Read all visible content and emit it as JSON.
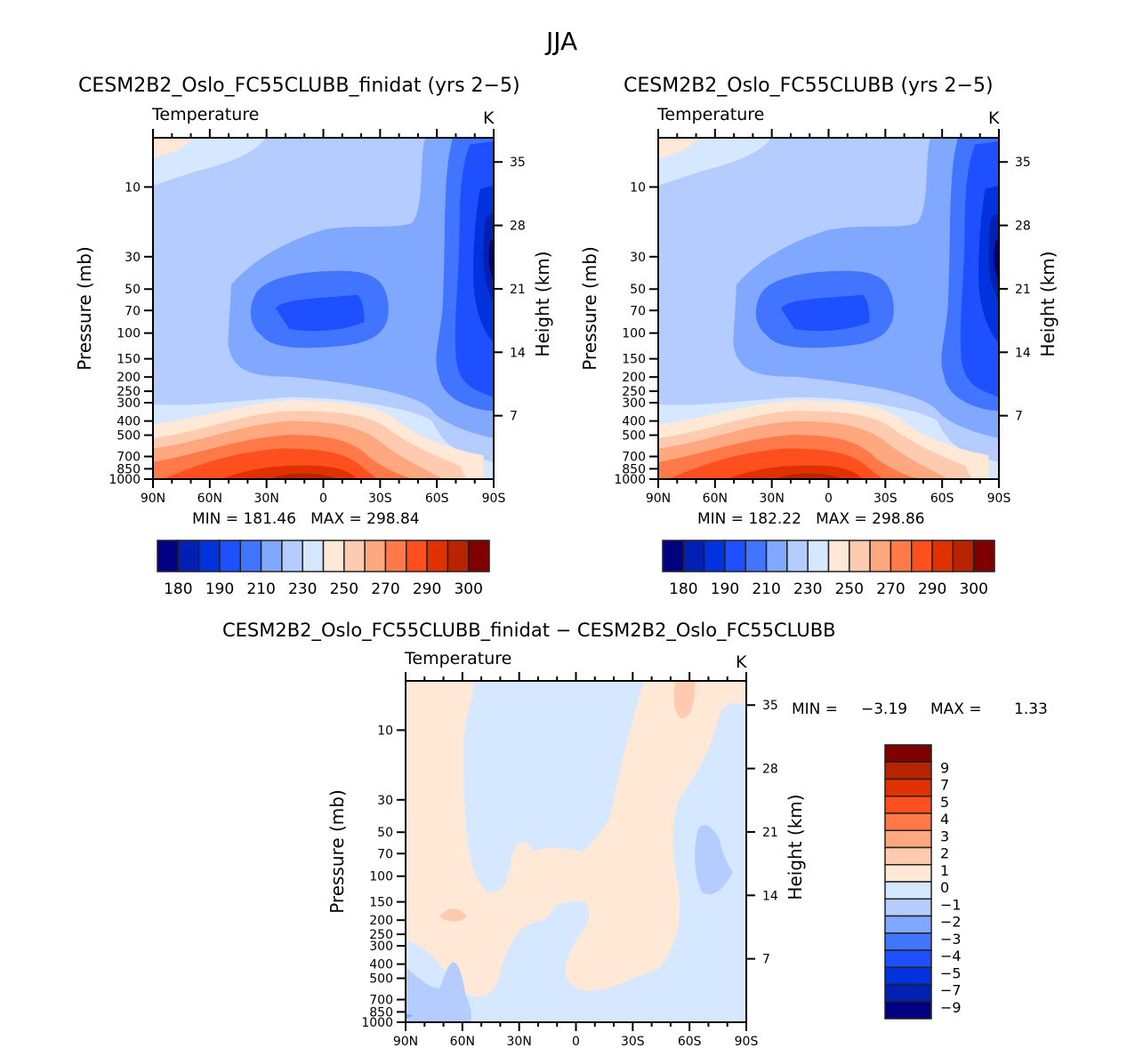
{
  "figure": {
    "title": "JJA"
  },
  "chart_data": [
    {
      "type": "heatmap",
      "id": "panel-finidat",
      "title": "CESM2B2_Oslo_FC55CLUBB_finidat (yrs 2−5)",
      "left_string": "Temperature",
      "right_string": "K",
      "xlabel": "",
      "ylabel": "Pressure (mb)",
      "ylabel_right": "Height (km)",
      "x_ticks": [
        "90N",
        "60N",
        "30N",
        "0",
        "30S",
        "60S",
        "90S"
      ],
      "y_ticks": [
        "10",
        "30",
        "50",
        "70",
        "100",
        "150",
        "200",
        "250",
        "300",
        "400",
        "500",
        "700",
        "850",
        "1000"
      ],
      "y_ticks_right": [
        "35",
        "28",
        "21",
        "14",
        "7"
      ],
      "stats": "MIN = 181.46   MAX = 298.84",
      "min": 181.46,
      "max": 298.84,
      "colorbar": {
        "orientation": "horizontal",
        "labels": [
          "180",
          "190",
          "210",
          "230",
          "250",
          "270",
          "290",
          "300"
        ],
        "colors": [
          "#000080",
          "#0020b4",
          "#0033dd",
          "#1e50ff",
          "#4275ff",
          "#80a8ff",
          "#b4ccff",
          "#d6e8ff",
          "#ffe8d6",
          "#ffcbb0",
          "#ffa880",
          "#ff7a48",
          "#ff4f1e",
          "#e03200",
          "#b82400",
          "#800000"
        ]
      }
    },
    {
      "type": "heatmap",
      "id": "panel-control",
      "title": "CESM2B2_Oslo_FC55CLUBB (yrs 2−5)",
      "left_string": "Temperature",
      "right_string": "K",
      "xlabel": "",
      "ylabel": "Pressure (mb)",
      "ylabel_right": "Height (km)",
      "x_ticks": [
        "90N",
        "60N",
        "30N",
        "0",
        "30S",
        "60S",
        "90S"
      ],
      "y_ticks": [
        "10",
        "30",
        "50",
        "70",
        "100",
        "150",
        "200",
        "250",
        "300",
        "400",
        "500",
        "700",
        "850",
        "1000"
      ],
      "y_ticks_right": [
        "35",
        "28",
        "21",
        "14",
        "7"
      ],
      "stats": "MIN = 182.22   MAX = 298.86",
      "min": 182.22,
      "max": 298.86,
      "colorbar": {
        "orientation": "horizontal",
        "labels": [
          "180",
          "190",
          "210",
          "230",
          "250",
          "270",
          "290",
          "300"
        ],
        "colors": [
          "#000080",
          "#0020b4",
          "#0033dd",
          "#1e50ff",
          "#4275ff",
          "#80a8ff",
          "#b4ccff",
          "#d6e8ff",
          "#ffe8d6",
          "#ffcbb0",
          "#ffa880",
          "#ff7a48",
          "#ff4f1e",
          "#e03200",
          "#b82400",
          "#800000"
        ]
      }
    },
    {
      "type": "heatmap",
      "id": "panel-diff",
      "title": "CESM2B2_Oslo_FC55CLUBB_finidat − CESM2B2_Oslo_FC55CLUBB",
      "left_string": "Temperature",
      "right_string": "K",
      "xlabel": "",
      "ylabel": "Pressure (mb)",
      "ylabel_right": "Height (km)",
      "x_ticks": [
        "90N",
        "60N",
        "30N",
        "0",
        "30S",
        "60S",
        "90S"
      ],
      "y_ticks": [
        "10",
        "30",
        "50",
        "70",
        "100",
        "150",
        "200",
        "250",
        "300",
        "400",
        "500",
        "700",
        "850",
        "1000"
      ],
      "y_ticks_right": [
        "35",
        "28",
        "21",
        "14",
        "7"
      ],
      "stats_min_label": "MIN =",
      "stats_min": "−3.19",
      "stats_max_label": "MAX =",
      "stats_max": "1.33",
      "min": -3.19,
      "max": 1.33,
      "colorbar": {
        "orientation": "vertical",
        "labels": [
          "9",
          "7",
          "5",
          "4",
          "3",
          "2",
          "1",
          "0",
          "−1",
          "−2",
          "−3",
          "−4",
          "−5",
          "−7",
          "−9"
        ],
        "colors": [
          "#800000",
          "#b82400",
          "#e03200",
          "#ff4f1e",
          "#ff7a48",
          "#ffa880",
          "#ffcbb0",
          "#ffe8d6",
          "#d6e8ff",
          "#b4ccff",
          "#80a8ff",
          "#4275ff",
          "#1e50ff",
          "#0033dd",
          "#0020b4",
          "#000080"
        ]
      }
    }
  ]
}
